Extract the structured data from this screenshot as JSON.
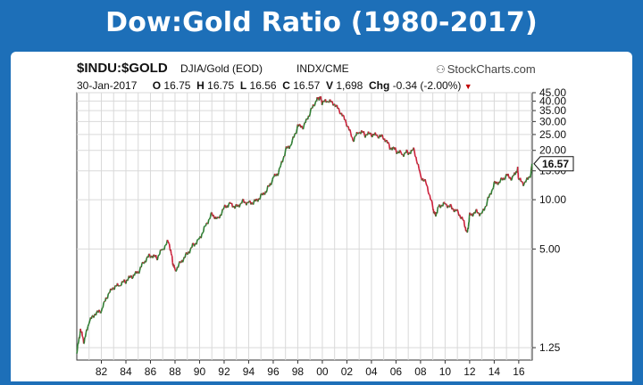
{
  "banner": {
    "title": "Dow:Gold Ratio (1980-2017)"
  },
  "header": {
    "symbol": "$INDU:$GOLD",
    "description": "DJIA/Gold (EOD)",
    "exchange": "INDX/CME",
    "brand": "StockCharts.com",
    "date": "30-Jan-2017",
    "open_label": "O",
    "open": "16.75",
    "high_label": "H",
    "high": "16.75",
    "low_label": "L",
    "low": "16.56",
    "close_label": "C",
    "close": "16.57",
    "volume_label": "V",
    "volume": "1,698",
    "change_label": "Chg",
    "change": "-0.34 (-2.00%)"
  },
  "colors": {
    "frame": "#1d6fb8",
    "up": "#2e7d32",
    "down": "#cc1f3a",
    "grid": "#d9d9d9"
  },
  "chart_data": {
    "type": "line",
    "scale": "log",
    "grid": true,
    "xlim": [
      1980.0,
      2017.1
    ],
    "ylim": [
      1.05,
      45
    ],
    "x_ticks": [
      {
        "year": 1982,
        "label": "82"
      },
      {
        "year": 1984,
        "label": "84"
      },
      {
        "year": 1986,
        "label": "86"
      },
      {
        "year": 1988,
        "label": "88"
      },
      {
        "year": 1990,
        "label": "90"
      },
      {
        "year": 1992,
        "label": "92"
      },
      {
        "year": 1994,
        "label": "94"
      },
      {
        "year": 1996,
        "label": "96"
      },
      {
        "year": 1998,
        "label": "98"
      },
      {
        "year": 2000,
        "label": "00"
      },
      {
        "year": 2002,
        "label": "02"
      },
      {
        "year": 2004,
        "label": "04"
      },
      {
        "year": 2006,
        "label": "06"
      },
      {
        "year": 2008,
        "label": "08"
      },
      {
        "year": 2010,
        "label": "10"
      },
      {
        "year": 2012,
        "label": "12"
      },
      {
        "year": 2014,
        "label": "14"
      },
      {
        "year": 2016,
        "label": "16"
      }
    ],
    "y_ticks": [
      {
        "value": 45,
        "label": "45.00"
      },
      {
        "value": 40,
        "label": "40.00"
      },
      {
        "value": 35,
        "label": "35.00"
      },
      {
        "value": 30,
        "label": "30.00"
      },
      {
        "value": 25,
        "label": "25.00"
      },
      {
        "value": 20,
        "label": "20.00"
      },
      {
        "value": 15,
        "label": "15.00"
      },
      {
        "value": 10,
        "label": "10.00"
      },
      {
        "value": 5,
        "label": "5.00"
      },
      {
        "value": 1.25,
        "label": "1.25"
      }
    ],
    "last_value": 16.57,
    "last_label": "16.57",
    "series": [
      {
        "x": [
          1980.0,
          1980.3,
          1980.6,
          1981.0,
          1981.5,
          1982.0,
          1982.5,
          1983.0,
          1983.5,
          1984.0,
          1984.5,
          1985.0,
          1985.5,
          1986.0,
          1986.5,
          1987.0,
          1987.5,
          1987.8,
          1988.0,
          1988.5,
          1989.0,
          1989.5,
          1990.0,
          1990.5,
          1991.0,
          1991.5,
          1992.0,
          1992.5,
          1993.0,
          1993.5,
          1994.0,
          1994.5,
          1995.0,
          1995.5,
          1996.0,
          1996.5,
          1997.0,
          1997.5,
          1998.0,
          1998.5,
          1999.0,
          1999.5,
          1999.8,
          2000.0,
          2000.5,
          2001.0,
          2001.5,
          2002.0,
          2002.5,
          2003.0,
          2003.5,
          2004.0,
          2004.5,
          2005.0,
          2005.5,
          2006.0,
          2006.5,
          2007.0,
          2007.5,
          2008.0,
          2008.5,
          2009.0,
          2009.2,
          2009.5,
          2010.0,
          2010.5,
          2011.0,
          2011.5,
          2011.8,
          2012.0,
          2012.5,
          2013.0,
          2013.5,
          2014.0,
          2014.5,
          2015.0,
          2015.5,
          2015.9,
          2016.0,
          2016.5,
          2017.0,
          2017.08
        ],
        "values": [
          1.15,
          1.6,
          1.35,
          1.8,
          2.0,
          2.1,
          2.6,
          2.9,
          3.0,
          3.2,
          3.4,
          3.6,
          4.2,
          4.6,
          4.4,
          5.0,
          5.6,
          4.2,
          3.7,
          4.2,
          4.7,
          5.3,
          5.8,
          7.0,
          8.2,
          7.6,
          9.0,
          9.5,
          9.0,
          9.8,
          9.6,
          9.7,
          10.5,
          11.5,
          13.5,
          15.0,
          20.0,
          22.0,
          28.0,
          28.0,
          34.0,
          40.0,
          42.0,
          39.0,
          40.0,
          38.0,
          34.0,
          29.0,
          23.0,
          26.0,
          25.0,
          25.0,
          24.5,
          24.0,
          21.0,
          20.0,
          19.0,
          19.5,
          20.0,
          14.0,
          12.5,
          9.0,
          8.0,
          9.2,
          9.5,
          9.0,
          8.5,
          7.5,
          6.2,
          8.0,
          8.5,
          8.2,
          10.0,
          12.5,
          13.0,
          14.0,
          13.5,
          15.5,
          13.2,
          12.5,
          14.5,
          16.57
        ]
      }
    ]
  }
}
